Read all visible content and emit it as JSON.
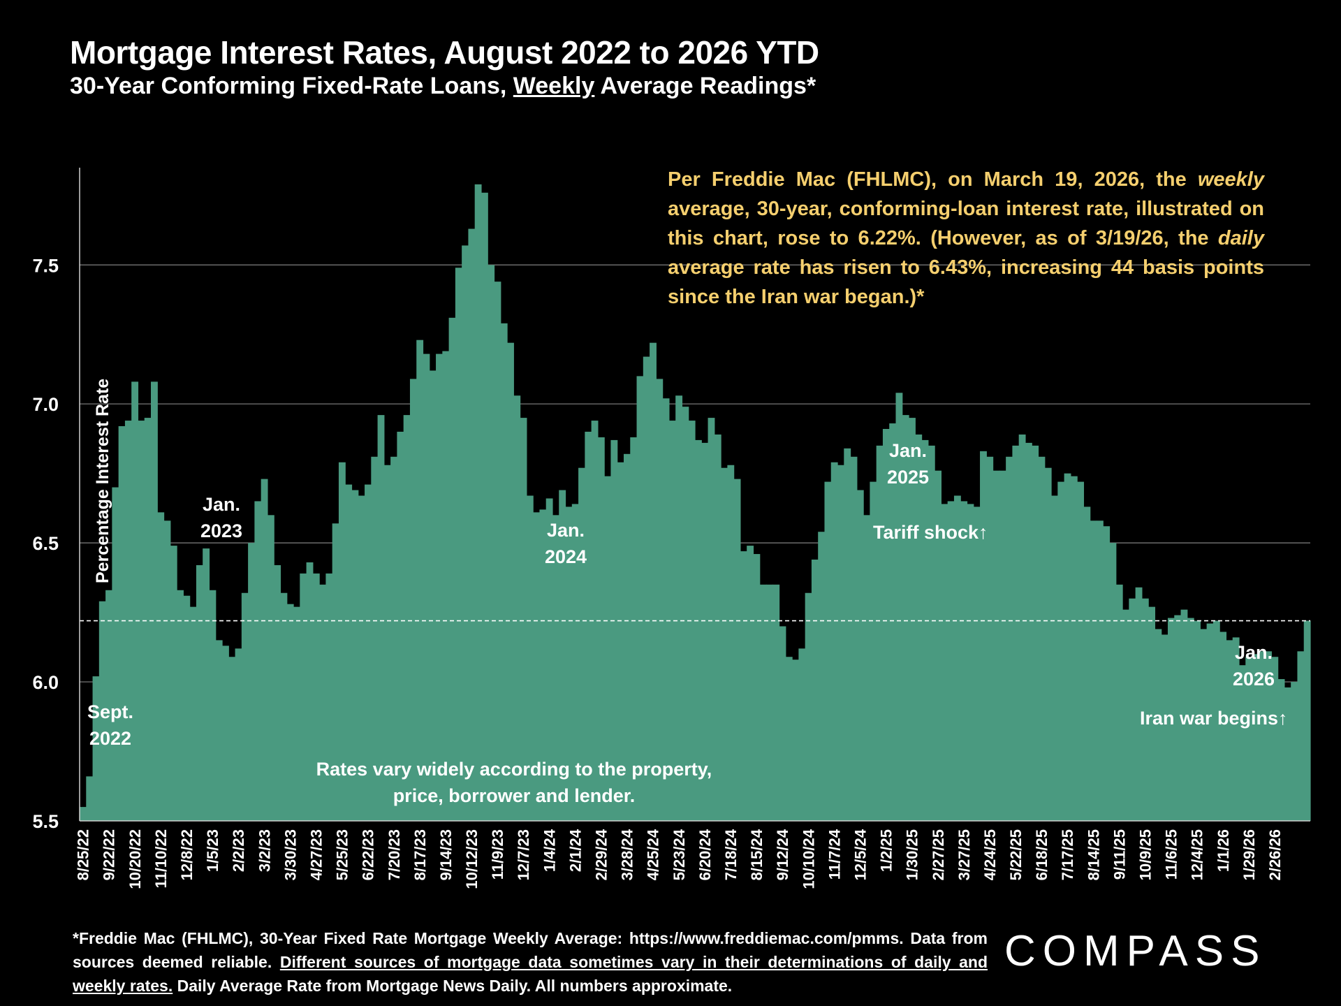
{
  "header": {
    "title": "Mortgage Interest Rates, August 2022 to 2026 YTD",
    "subtitle_pre": "30-Year Conforming Fixed-Rate Loans, ",
    "subtitle_underlined": "Weekly",
    "subtitle_post": " Average Readings*"
  },
  "callout": {
    "part1": "Per Freddie Mac (FHLMC), on March 19, 2026, the ",
    "weekly": "weekly",
    "part2": " average, 30-year, conforming-loan interest rate, illustrated on this chart, rose to 6.22%. (However, as of 3/19/26, the ",
    "daily": "daily",
    "part3": " average rate has risen to 6.43%, increasing 44 basis points since the Iran war began.)*"
  },
  "footnote": {
    "line1": "*Freddie Mac (FHLMC), 30-Year Fixed Rate Mortgage Weekly Average:  https://www.freddiemac.com/pmms.",
    "line2_pre": "Data from sources deemed reliable. ",
    "line2_underlined": "Different sources of mortgage data sometimes vary in their determinations of daily and weekly rates.",
    "line2_post": " Daily Average Rate from Mortgage News Daily. All numbers approximate."
  },
  "logo": {
    "text": "COMPASS"
  },
  "colors": {
    "bars": "#4a9a80",
    "callout": "#f5cf6e",
    "background": "#000000",
    "reference_line": "#ffffff"
  },
  "chart_data": {
    "type": "bar",
    "ylabel": "Percentage Interest  Rate",
    "xlabel": "",
    "ylim": [
      5.5,
      7.85
    ],
    "yticks": [
      5.5,
      6.0,
      6.5,
      7.0,
      7.5
    ],
    "ytick_labels": [
      "5.5",
      "6.0",
      "6.5",
      "7.0",
      "7.5"
    ],
    "grid": "horizontal",
    "reference_line": {
      "value": 6.22,
      "style": "dashed"
    },
    "x_tick_labels": [
      "8/25/22",
      "9/22/22",
      "10/20/22",
      "11/10/22",
      "12/8/22",
      "1/5/23",
      "2/2/23",
      "3/2/23",
      "3/30/23",
      "4/27/23",
      "5/25/23",
      "6/22/23",
      "7/20/23",
      "8/17/23",
      "9/14/23",
      "10/12/23",
      "11/9/23",
      "12/7/23",
      "1/4/24",
      "2/1/24",
      "2/29/24",
      "3/28/24",
      "4/25/24",
      "5/23/24",
      "6/20/24",
      "7/18/24",
      "8/15/24",
      "9/12/24",
      "10/10/24",
      "11/7/24",
      "12/5/24",
      "1/2/25",
      "1/30/25",
      "2/27/25",
      "3/27/25",
      "4/24/25",
      "5/22/25",
      "6/18/25",
      "7/17/25",
      "8/14/25",
      "9/11/25",
      "10/9/25",
      "11/6/25",
      "12/4/25",
      "1/1/26",
      "1/29/26",
      "2/26/26"
    ],
    "values": [
      5.55,
      5.66,
      6.02,
      6.29,
      6.33,
      6.7,
      6.92,
      6.94,
      7.08,
      6.94,
      6.95,
      7.08,
      6.61,
      6.58,
      6.49,
      6.33,
      6.31,
      6.27,
      6.42,
      6.48,
      6.33,
      6.15,
      6.13,
      6.09,
      6.12,
      6.32,
      6.5,
      6.65,
      6.73,
      6.6,
      6.42,
      6.32,
      6.28,
      6.27,
      6.39,
      6.43,
      6.39,
      6.35,
      6.39,
      6.57,
      6.79,
      6.71,
      6.69,
      6.67,
      6.71,
      6.81,
      6.96,
      6.78,
      6.81,
      6.9,
      6.96,
      7.09,
      7.23,
      7.18,
      7.12,
      7.18,
      7.19,
      7.31,
      7.49,
      7.57,
      7.63,
      7.79,
      7.76,
      7.5,
      7.44,
      7.29,
      7.22,
      7.03,
      6.95,
      6.67,
      6.61,
      6.62,
      6.66,
      6.6,
      6.69,
      6.63,
      6.64,
      6.77,
      6.9,
      6.94,
      6.88,
      6.74,
      6.87,
      6.79,
      6.82,
      6.88,
      7.1,
      7.17,
      7.22,
      7.09,
      7.02,
      6.94,
      7.03,
      6.99,
      6.94,
      6.87,
      6.86,
      6.95,
      6.89,
      6.77,
      6.78,
      6.73,
      6.47,
      6.49,
      6.46,
      6.35,
      6.35,
      6.35,
      6.2,
      6.09,
      6.08,
      6.12,
      6.32,
      6.44,
      6.54,
      6.72,
      6.79,
      6.78,
      6.84,
      6.81,
      6.69,
      6.6,
      6.72,
      6.85,
      6.91,
      6.93,
      7.04,
      6.96,
      6.95,
      6.89,
      6.87,
      6.85,
      6.76,
      6.64,
      6.65,
      6.67,
      6.65,
      6.64,
      6.63,
      6.83,
      6.81,
      6.76,
      6.76,
      6.81,
      6.85,
      6.89,
      6.86,
      6.85,
      6.81,
      6.77,
      6.67,
      6.72,
      6.75,
      6.74,
      6.72,
      6.63,
      6.58,
      6.58,
      6.56,
      6.5,
      6.35,
      6.26,
      6.3,
      6.34,
      6.3,
      6.27,
      6.19,
      6.17,
      6.23,
      6.24,
      6.26,
      6.23,
      6.22,
      6.19,
      6.21,
      6.22,
      6.18,
      6.15,
      6.16,
      6.06,
      6.09,
      6.1,
      6.11,
      6.11,
      6.09,
      6.01,
      5.98,
      6.0,
      6.11,
      6.22
    ],
    "annotations": [
      "Sept.",
      "2022",
      "Jan.",
      "2023",
      "Jan.",
      "2024",
      "Jan.",
      "2025",
      "Tariff shock↑",
      "Jan.",
      "2026",
      "Iran war begins↑",
      "Rates vary widely according to the property,",
      "price, borrower and lender."
    ]
  }
}
